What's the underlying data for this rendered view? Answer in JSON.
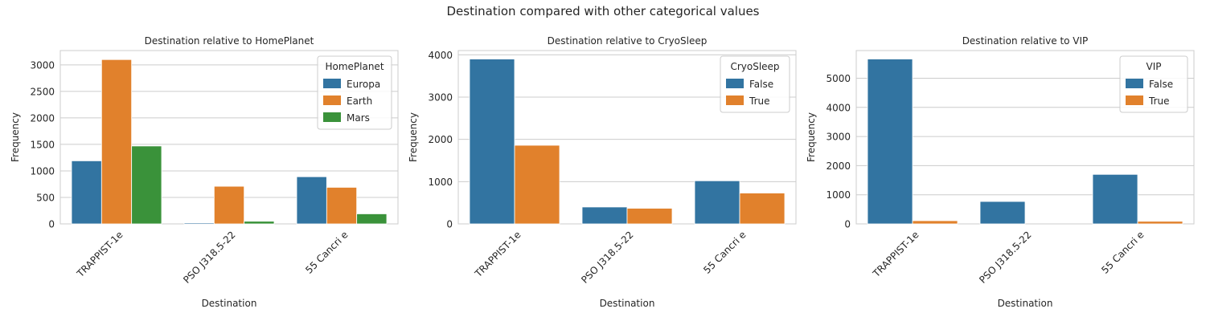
{
  "suptitle": "Destination compared with other categorical values",
  "colors": {
    "blue": "#3274a1",
    "orange": "#e1812c",
    "green": "#3a923a",
    "grid": "#cccccc",
    "axis": "#cccccc",
    "text": "#262626"
  },
  "chart_data": [
    {
      "type": "bar",
      "title": "Destination relative to HomePlanet",
      "xlabel": "Destination",
      "ylabel": "Frequency",
      "categories": [
        "TRAPPIST-1e",
        "PSO J318.5-22",
        "55 Cancri e"
      ],
      "ylim": [
        0,
        3270
      ],
      "yticks": [
        0,
        500,
        1000,
        1500,
        2000,
        2500,
        3000
      ],
      "grid": true,
      "legend": {
        "title": "HomePlanet",
        "position": "top-right"
      },
      "series": [
        {
          "name": "Europa",
          "color": "#3274a1",
          "values": [
            1190,
            20,
            890
          ]
        },
        {
          "name": "Earth",
          "color": "#e1812c",
          "values": [
            3100,
            710,
            690
          ]
        },
        {
          "name": "Mars",
          "color": "#3a923a",
          "values": [
            1470,
            50,
            190
          ]
        }
      ]
    },
    {
      "type": "bar",
      "title": "Destination relative to CryoSleep",
      "xlabel": "Destination",
      "ylabel": "Frequency",
      "categories": [
        "TRAPPIST-1e",
        "PSO J318.5-22",
        "55 Cancri e"
      ],
      "ylim": [
        0,
        4100
      ],
      "yticks": [
        0,
        1000,
        2000,
        3000,
        4000
      ],
      "grid": true,
      "legend": {
        "title": "CryoSleep",
        "position": "top-right"
      },
      "series": [
        {
          "name": "False",
          "color": "#3274a1",
          "values": [
            3900,
            400,
            1020
          ]
        },
        {
          "name": "True",
          "color": "#e1812c",
          "values": [
            1860,
            370,
            730
          ]
        }
      ]
    },
    {
      "type": "bar",
      "title": "Destination relative to VIP",
      "xlabel": "Destination",
      "ylabel": "Frequency",
      "categories": [
        "TRAPPIST-1e",
        "PSO J318.5-22",
        "55 Cancri e"
      ],
      "ylim": [
        0,
        5950
      ],
      "yticks": [
        0,
        1000,
        2000,
        3000,
        4000,
        5000
      ],
      "grid": true,
      "legend": {
        "title": "VIP",
        "position": "top-right"
      },
      "series": [
        {
          "name": "False",
          "color": "#3274a1",
          "values": [
            5660,
            770,
            1700
          ]
        },
        {
          "name": "True",
          "color": "#e1812c",
          "values": [
            110,
            0,
            90
          ]
        }
      ]
    }
  ]
}
